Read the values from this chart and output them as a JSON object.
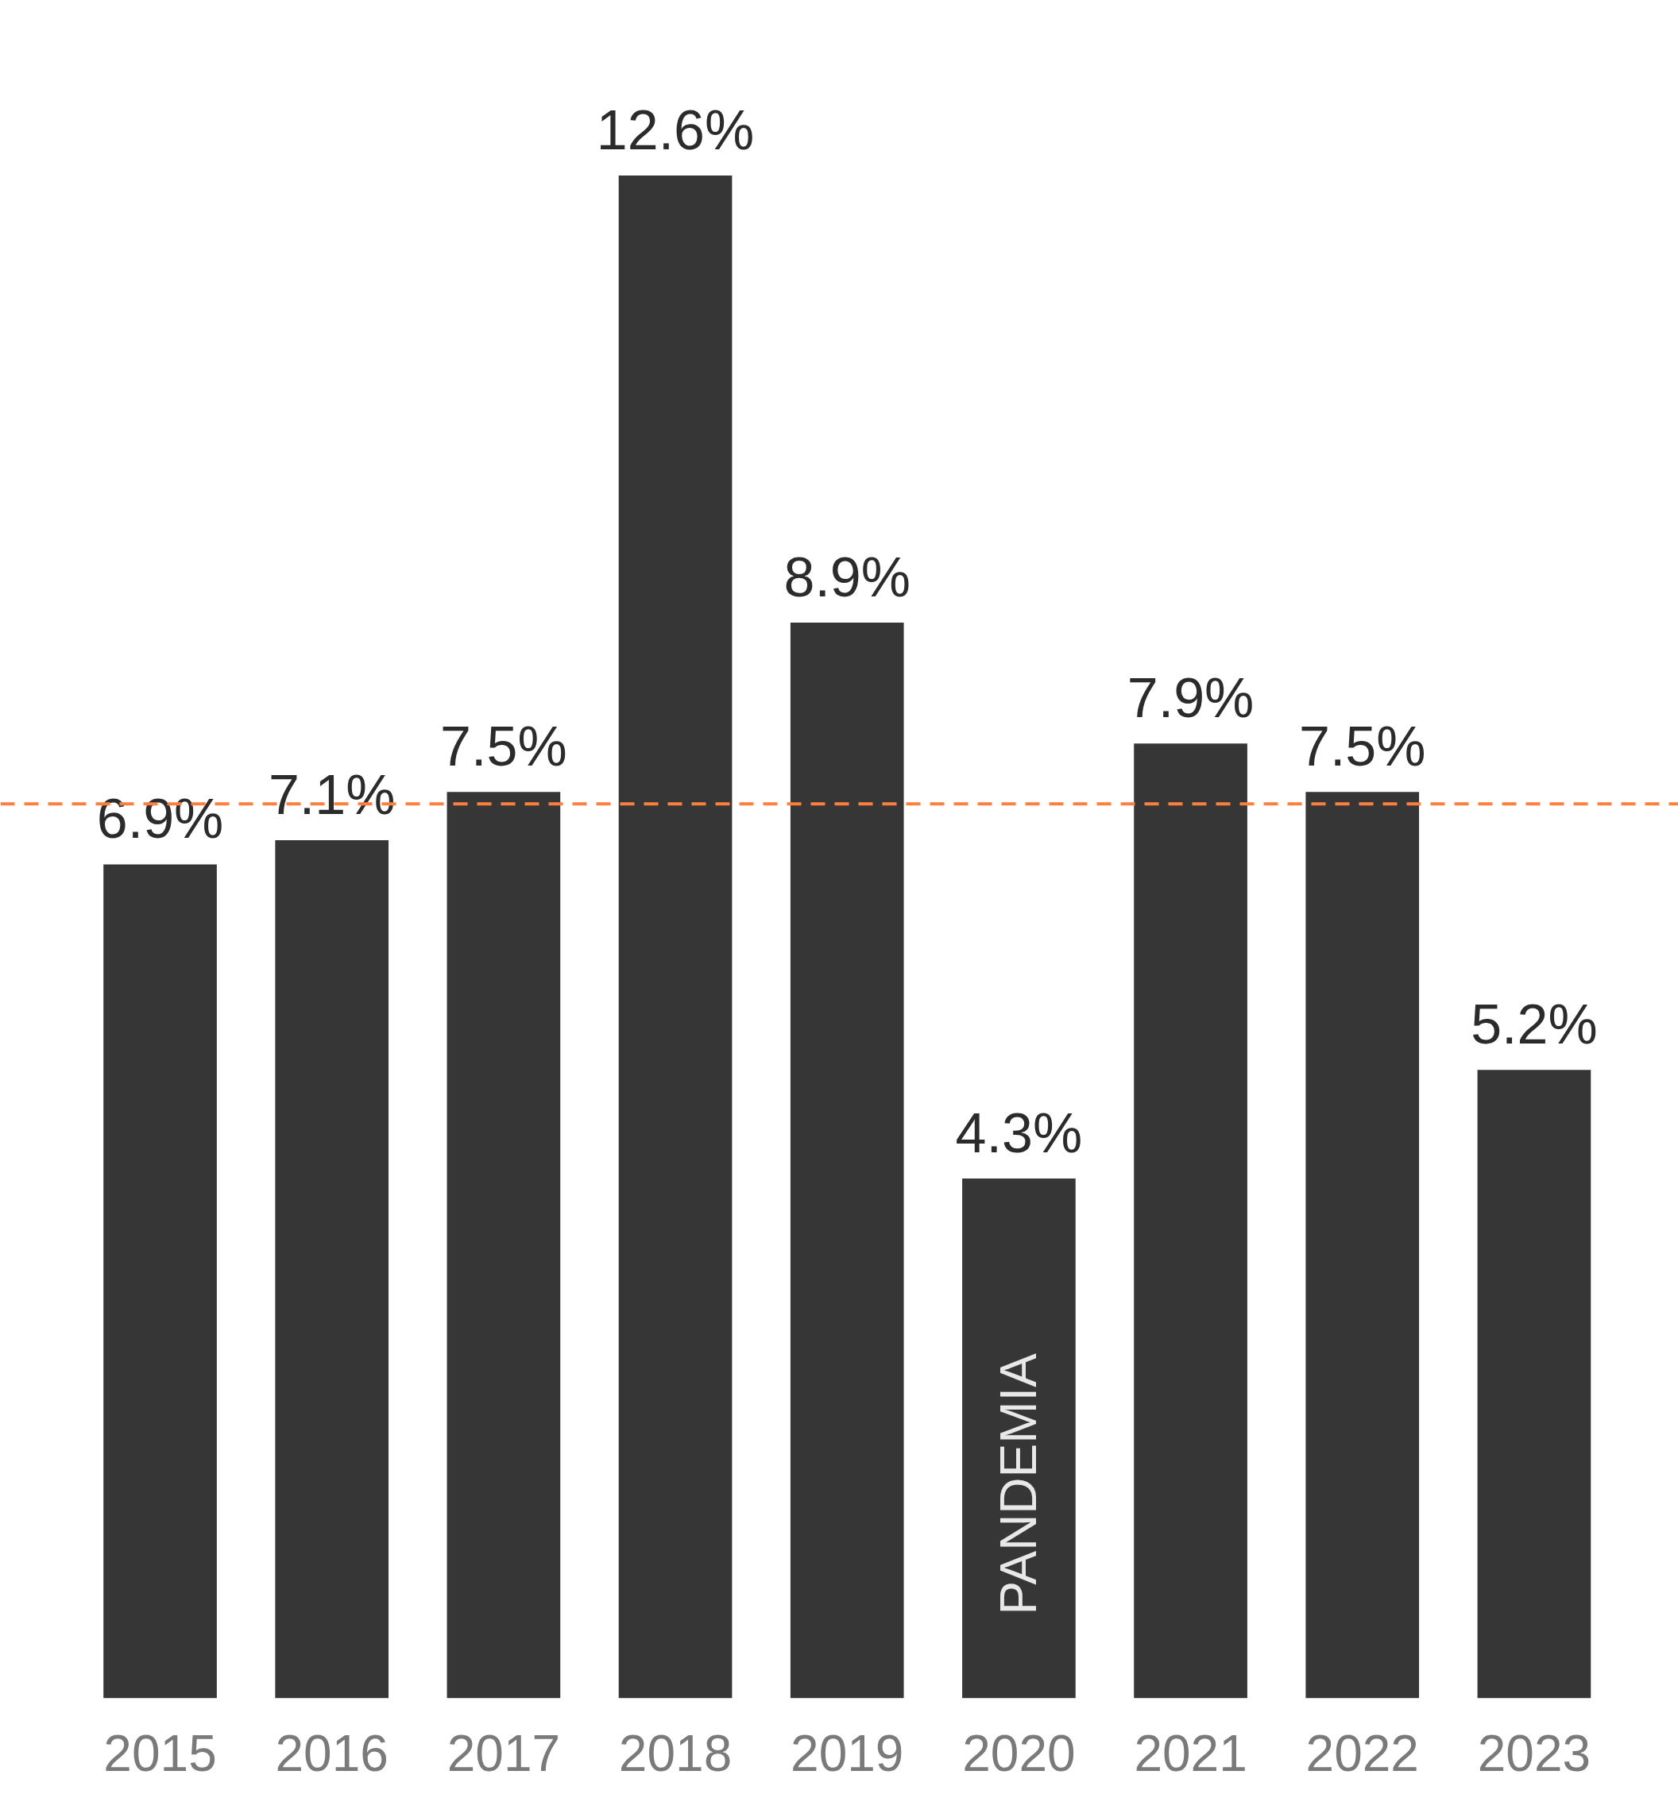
{
  "chart_data": {
    "type": "bar",
    "categories": [
      "2015",
      "2016",
      "2017",
      "2018",
      "2019",
      "2020",
      "2021",
      "2022",
      "2023"
    ],
    "values": [
      6.9,
      7.1,
      7.5,
      12.6,
      8.9,
      4.3,
      7.9,
      7.5,
      5.2
    ],
    "value_labels": [
      "6.9%",
      "7.1%",
      "7.5%",
      "12.6%",
      "8.9%",
      "4.3%",
      "7.9%",
      "7.5%",
      "5.2%"
    ],
    "color": "#363636",
    "grid": false,
    "ref_lines": [
      {
        "axis": "y",
        "value": 7.4,
        "label": null,
        "color": "#ff7f3f",
        "line_style": "dashed"
      }
    ],
    "annotations": [
      "PANDEMIA"
    ]
  }
}
